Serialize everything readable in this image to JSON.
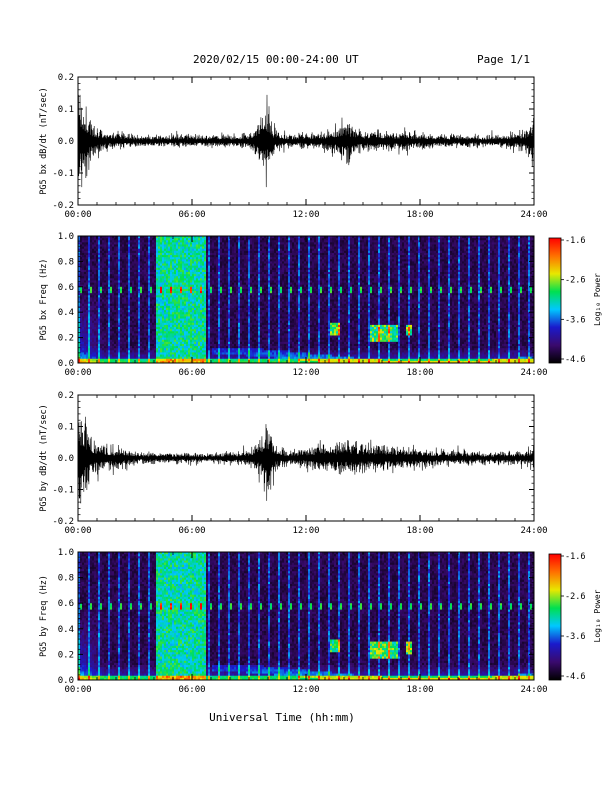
{
  "header": {
    "title": "2020/02/15  00:00-24:00 UT",
    "page": "Page 1/1"
  },
  "footer": {
    "xlabel": "Universal Time (hh:mm)"
  },
  "colors": {
    "trace": "#000000",
    "colormap": [
      "#000000",
      "#3a0a6e",
      "#1a1acc",
      "#00c8ff",
      "#00e050",
      "#e8e800",
      "#ff7000",
      "#ff0000"
    ]
  },
  "chart_data": [
    {
      "type": "line",
      "ylabel": "PG5 bx dB/dt (nT/sec)",
      "ylim": [
        -0.2,
        0.2
      ],
      "yticks": [
        "0.2",
        "0.1",
        "0.0",
        "-0.1",
        "-0.2"
      ],
      "xlim": [
        "00:00",
        "24:00"
      ],
      "xticks": [
        "00:00",
        "06:00",
        "12:00",
        "18:00",
        "24:00"
      ],
      "envelope_x_hours": [
        0,
        0.3,
        0.8,
        1.5,
        3,
        5,
        7,
        9,
        9.5,
        9.8,
        10.3,
        11,
        12,
        13,
        13.7,
        14.2,
        15,
        16,
        17,
        18,
        20,
        22,
        23.5,
        24
      ],
      "envelope_amplitude": [
        0.12,
        0.08,
        0.035,
        0.02,
        0.012,
        0.012,
        0.012,
        0.015,
        0.04,
        0.09,
        0.03,
        0.015,
        0.015,
        0.02,
        0.035,
        0.04,
        0.02,
        0.02,
        0.02,
        0.015,
        0.012,
        0.012,
        0.02,
        0.05
      ]
    },
    {
      "type": "heatmap",
      "ylabel": "PG5 bx Freq (Hz)",
      "ylim": [
        0.0,
        1.0
      ],
      "yticks": [
        "1.0",
        "0.8",
        "0.6",
        "0.4",
        "0.2",
        "0.0"
      ],
      "xlim": [
        "00:00",
        "24:00"
      ],
      "xticks": [
        "00:00",
        "06:00",
        "12:00",
        "18:00",
        "24:00"
      ],
      "colorbar": {
        "label": "Log₁₀ Power",
        "range": [
          -4.6,
          -1.6
        ],
        "ticks": [
          "-1.6",
          "-2.6",
          "-3.6",
          "-4.6"
        ]
      },
      "persistent_line_freq_hz": 0.57,
      "noisy_interval_hours": [
        4.1,
        6.7
      ],
      "events": [
        {
          "x_hours": [
            13.3,
            13.8
          ],
          "freq_hz": [
            0.22,
            0.32
          ]
        },
        {
          "x_hours": [
            15.4,
            16.8
          ],
          "freq_hz": [
            0.16,
            0.3
          ]
        },
        {
          "x_hours": [
            17.3,
            17.6
          ],
          "freq_hz": [
            0.22,
            0.3
          ]
        }
      ]
    },
    {
      "type": "line",
      "ylabel": "PG5 by dB/dt (nT/sec)",
      "ylim": [
        -0.2,
        0.2
      ],
      "yticks": [
        "0.2",
        "0.1",
        "0.0",
        "-0.1",
        "-0.2"
      ],
      "xlim": [
        "00:00",
        "24:00"
      ],
      "xticks": [
        "00:00",
        "06:00",
        "12:00",
        "18:00",
        "24:00"
      ],
      "envelope_x_hours": [
        0,
        0.3,
        0.8,
        1.5,
        3,
        5,
        7,
        9,
        9.6,
        9.9,
        10.4,
        11,
        12,
        13,
        14,
        15,
        16,
        17,
        18,
        20,
        22,
        23.5,
        24
      ],
      "envelope_amplitude": [
        0.12,
        0.08,
        0.04,
        0.025,
        0.012,
        0.01,
        0.01,
        0.015,
        0.04,
        0.08,
        0.03,
        0.015,
        0.02,
        0.03,
        0.035,
        0.03,
        0.03,
        0.025,
        0.02,
        0.015,
        0.012,
        0.015,
        0.025
      ]
    },
    {
      "type": "heatmap",
      "ylabel": "PG5 by Freq (Hz)",
      "ylim": [
        0.0,
        1.0
      ],
      "yticks": [
        "1.0",
        "0.8",
        "0.6",
        "0.4",
        "0.2",
        "0.0"
      ],
      "xlim": [
        "00:00",
        "24:00"
      ],
      "xticks": [
        "00:00",
        "06:00",
        "12:00",
        "18:00",
        "24:00"
      ],
      "colorbar": {
        "label": "Log₁₀ Power",
        "range": [
          -4.6,
          -1.6
        ],
        "ticks": [
          "-1.6",
          "-2.6",
          "-3.6",
          "-4.6"
        ]
      },
      "persistent_line_freq_hz": 0.57,
      "noisy_interval_hours": [
        4.1,
        6.7
      ],
      "events": [
        {
          "x_hours": [
            13.3,
            13.8
          ],
          "freq_hz": [
            0.22,
            0.32
          ]
        },
        {
          "x_hours": [
            15.4,
            16.8
          ],
          "freq_hz": [
            0.16,
            0.3
          ]
        },
        {
          "x_hours": [
            17.3,
            17.6
          ],
          "freq_hz": [
            0.2,
            0.3
          ]
        }
      ]
    }
  ]
}
